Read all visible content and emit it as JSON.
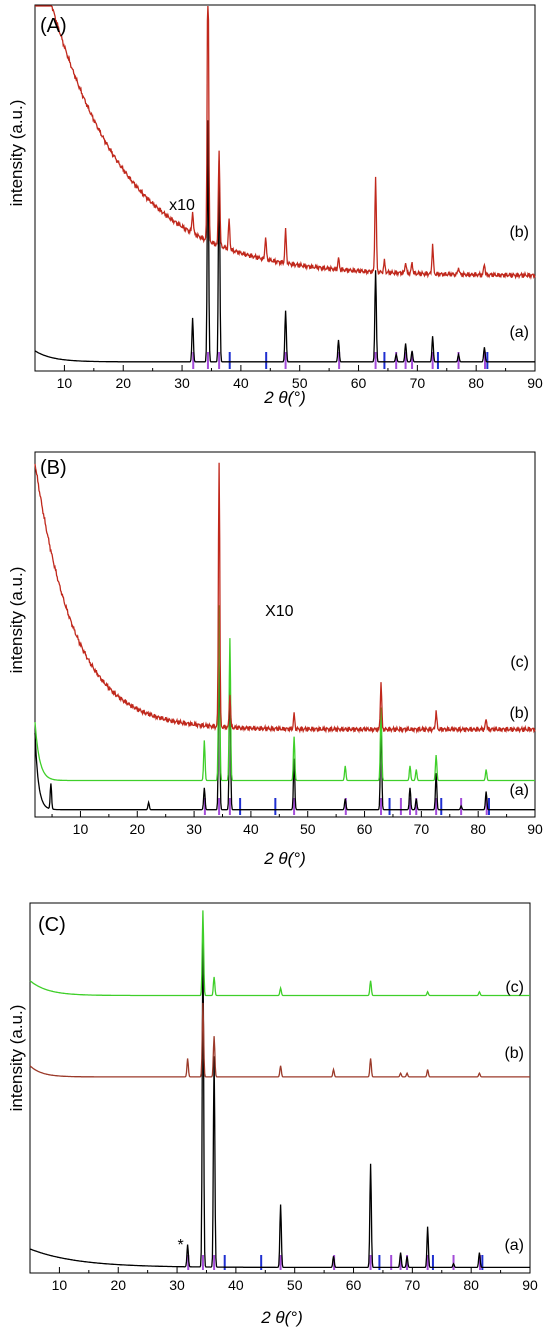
{
  "chart_data": [
    {
      "type": "line",
      "panel_label": "(A)",
      "xlabel": "2 θ(°)",
      "ylabel": "intensity (a.u.)",
      "xlim": [
        5,
        90
      ],
      "xticks": [
        10,
        20,
        30,
        40,
        50,
        60,
        70,
        80,
        90
      ],
      "annotations": [
        {
          "text": "x10",
          "x": 30
        }
      ],
      "series": [
        {
          "name": "(a)",
          "color": "#000000",
          "baseline": 2.5,
          "tail": 3,
          "tail_decay": 3,
          "peaks": [
            [
              31.8,
              12
            ],
            [
              34.4,
              66
            ],
            [
              36.3,
              55
            ],
            [
              47.6,
              14
            ],
            [
              56.6,
              6
            ],
            [
              62.9,
              25
            ],
            [
              66.4,
              2
            ],
            [
              68.0,
              5
            ],
            [
              69.1,
              3
            ],
            [
              72.6,
              7
            ],
            [
              77.0,
              2
            ],
            [
              81.4,
              4
            ]
          ]
        },
        {
          "name": "(b)",
          "color": "#c0281c",
          "baseline": 26,
          "tail": 92,
          "tail_decay": 13,
          "peaks": [
            [
              31.8,
              6
            ],
            [
              34.4,
              85
            ],
            [
              36.3,
              26
            ],
            [
              38.0,
              8
            ],
            [
              44.2,
              6
            ],
            [
              47.6,
              9
            ],
            [
              56.6,
              3
            ],
            [
              62.9,
              26
            ],
            [
              64.4,
              3
            ],
            [
              68.0,
              3
            ],
            [
              69.1,
              3
            ],
            [
              72.6,
              8
            ],
            [
              77.0,
              2
            ],
            [
              81.4,
              3
            ]
          ]
        }
      ],
      "reference_ticks": {
        "purple": [
          31.9,
          34.4,
          36.3,
          47.6,
          56.7,
          62.9,
          66.4,
          68.0,
          69.1,
          72.6,
          77.0,
          81.5
        ],
        "blue": [
          38.1,
          44.3,
          64.4,
          73.5,
          81.9
        ]
      }
    },
    {
      "type": "line",
      "panel_label": "(B)",
      "xlabel": "2 θ(°)",
      "ylabel": "intensity (a.u.)",
      "xlim": [
        2,
        90
      ],
      "xticks": [
        10,
        20,
        30,
        40,
        50,
        60,
        70,
        80,
        90
      ],
      "annotations": [
        {
          "text": "X10",
          "x": 45
        }
      ],
      "series": [
        {
          "name": "(a)",
          "color": "#000000",
          "baseline": 2,
          "tail": 21,
          "tail_decay": 0.6,
          "peaks": [
            [
              4.8,
              7
            ],
            [
              22,
              2
            ],
            [
              31.8,
              6
            ],
            [
              34.4,
              43
            ],
            [
              36.3,
              37
            ],
            [
              47.6,
              14
            ],
            [
              56.6,
              3
            ],
            [
              62.9,
              25
            ],
            [
              68.0,
              6
            ],
            [
              69.1,
              3
            ],
            [
              72.6,
              10
            ],
            [
              77.0,
              1
            ],
            [
              81.4,
              5
            ]
          ]
        },
        {
          "name": "(b)",
          "color": "#3fcf2a",
          "baseline": 10,
          "tail": 16,
          "tail_decay": 0.8,
          "peaks": [
            [
              31.8,
              11
            ],
            [
              34.4,
              48
            ],
            [
              36.3,
              39
            ],
            [
              47.6,
              12
            ],
            [
              56.6,
              4
            ],
            [
              62.9,
              20
            ],
            [
              68.0,
              4
            ],
            [
              69.1,
              3
            ],
            [
              72.6,
              7
            ],
            [
              81.4,
              3
            ]
          ]
        },
        {
          "name": "(c)",
          "color": "#c0281c",
          "baseline": 24,
          "tail": 73,
          "tail_decay": 7,
          "peaks": [
            [
              34.4,
              73
            ],
            [
              36.3,
              9
            ],
            [
              47.6,
              4
            ],
            [
              62.9,
              13
            ],
            [
              72.6,
              5
            ],
            [
              81.4,
              3
            ]
          ]
        }
      ],
      "reference_ticks": {
        "purple": [
          31.9,
          34.4,
          36.3,
          47.6,
          56.7,
          62.9,
          66.4,
          68.0,
          69.1,
          72.6,
          77.0,
          81.5
        ],
        "blue": [
          38.1,
          44.3,
          64.4,
          73.5,
          81.9
        ]
      }
    },
    {
      "type": "line",
      "panel_label": "(C)",
      "xlabel": "2 θ(°)",
      "ylabel": "intensity (a.u.)",
      "xlim": [
        5,
        90
      ],
      "xticks": [
        10,
        20,
        30,
        40,
        50,
        60,
        70,
        80,
        90
      ],
      "annotations": [
        {
          "text": "*",
          "x": 30.6
        }
      ],
      "series": [
        {
          "name": "(a)",
          "color": "#000000",
          "baseline": 1.5,
          "tail": 5,
          "tail_decay": 8,
          "peaks": [
            [
              31.8,
              6
            ],
            [
              34.4,
              91
            ],
            [
              36.3,
              57
            ],
            [
              47.6,
              17
            ],
            [
              56.6,
              3
            ],
            [
              62.9,
              28
            ],
            [
              68.0,
              4
            ],
            [
              69.1,
              3
            ],
            [
              72.6,
              11
            ],
            [
              77.0,
              1
            ],
            [
              81.4,
              4
            ]
          ]
        },
        {
          "name": "(b)",
          "color": "#9b3a2a",
          "baseline": 53,
          "tail": 3,
          "tail_decay": 2,
          "peaks": [
            [
              31.8,
              5
            ],
            [
              34.4,
              20
            ],
            [
              36.3,
              11
            ],
            [
              47.6,
              3
            ],
            [
              56.6,
              2
            ],
            [
              62.9,
              5
            ],
            [
              68.0,
              1
            ],
            [
              69.1,
              1
            ],
            [
              72.6,
              2
            ],
            [
              81.4,
              1
            ]
          ]
        },
        {
          "name": "(c)",
          "color": "#3fcf2a",
          "baseline": 75,
          "tail": 4,
          "tail_decay": 3,
          "peaks": [
            [
              34.4,
              23
            ],
            [
              36.3,
              5
            ],
            [
              47.6,
              2
            ],
            [
              62.9,
              4
            ],
            [
              72.6,
              1
            ],
            [
              81.4,
              1
            ]
          ]
        }
      ],
      "reference_ticks": {
        "purple": [
          31.9,
          34.4,
          36.3,
          47.6,
          56.7,
          62.9,
          66.4,
          68.0,
          69.1,
          72.6,
          77.0,
          81.5
        ],
        "blue": [
          38.1,
          44.3,
          64.4,
          73.5,
          81.9
        ]
      }
    }
  ]
}
